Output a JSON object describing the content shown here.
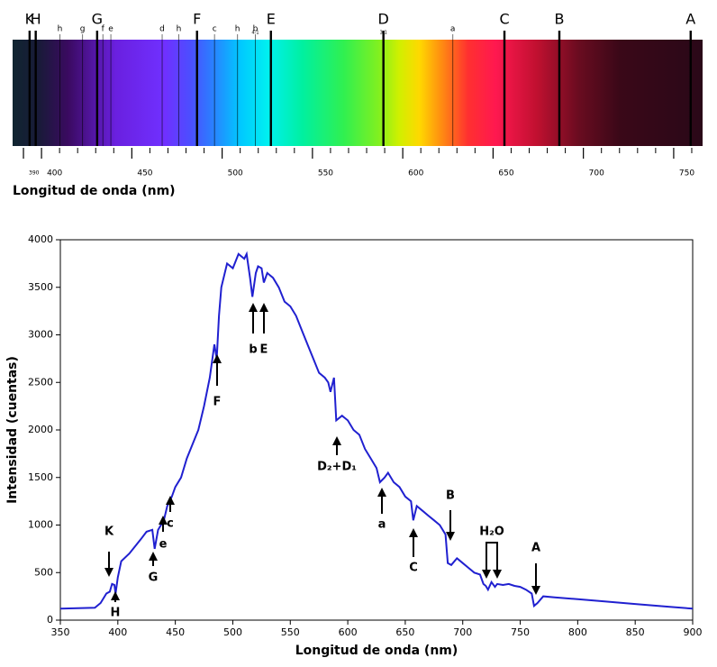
{
  "chart_data": [
    {
      "type": "spectrum",
      "xlabel": "Longitud de onda (nm)",
      "xlim": [
        384,
        766
      ],
      "xticks": [
        390,
        400,
        450,
        500,
        550,
        600,
        650,
        700,
        750
      ],
      "xminorticks": [
        410,
        420,
        430,
        440,
        460,
        470,
        480,
        490,
        510,
        520,
        530,
        540,
        560,
        570,
        580,
        590,
        610,
        620,
        630,
        640,
        660,
        670,
        680,
        690,
        710,
        720,
        730,
        740,
        760
      ],
      "lines": [
        {
          "label": "K",
          "wavelength": 393.4,
          "strong": true
        },
        {
          "label": "H",
          "wavelength": 396.8,
          "strong": true
        },
        {
          "label": "h",
          "wavelength": 410.2,
          "strong": false
        },
        {
          "label": "g",
          "wavelength": 422.7,
          "strong": false
        },
        {
          "label": "G",
          "wavelength": 430.8,
          "strong": true
        },
        {
          "label": "f",
          "wavelength": 434.0,
          "strong": false
        },
        {
          "label": "e",
          "wavelength": 438.4,
          "strong": false
        },
        {
          "label": "d",
          "wavelength": 466.8,
          "strong": false
        },
        {
          "label": "h",
          "wavelength": 476.0,
          "strong": false
        },
        {
          "label": "F",
          "wavelength": 486.1,
          "strong": true
        },
        {
          "label": "c",
          "wavelength": 495.8,
          "strong": false
        },
        {
          "label": "h",
          "wavelength": 508.5,
          "strong": false
        },
        {
          "label": "b",
          "sub": "4-1",
          "wavelength": 518.4,
          "strong": false
        },
        {
          "label": "E",
          "wavelength": 527.0,
          "strong": true
        },
        {
          "label": "D",
          "sub": "3-1",
          "wavelength": 589.3,
          "strong": true
        },
        {
          "label": "a",
          "wavelength": 627.7,
          "strong": false
        },
        {
          "label": "C",
          "wavelength": 656.3,
          "strong": true
        },
        {
          "label": "B",
          "wavelength": 686.7,
          "strong": true
        },
        {
          "label": "A",
          "wavelength": 759.4,
          "strong": true
        }
      ]
    },
    {
      "type": "line",
      "xlabel": "Longitud de onda (nm)",
      "ylabel": "Intensidad (cuentas)",
      "color": "#2020d0",
      "xlim": [
        350,
        900
      ],
      "ylim": [
        0,
        4000
      ],
      "xticks": [
        350,
        400,
        450,
        500,
        550,
        600,
        650,
        700,
        750,
        800,
        850,
        900
      ],
      "yticks": [
        0,
        500,
        1000,
        1500,
        2000,
        2500,
        3000,
        3500,
        4000
      ],
      "x": [
        350,
        380,
        385,
        390,
        393,
        395,
        397,
        398,
        400,
        403,
        410,
        420,
        425,
        430,
        432,
        435,
        440,
        443,
        447,
        450,
        455,
        460,
        465,
        470,
        475,
        480,
        484,
        486,
        488,
        490,
        495,
        500,
        505,
        510,
        512,
        515,
        517,
        520,
        522,
        525,
        527,
        530,
        535,
        540,
        545,
        550,
        555,
        560,
        565,
        570,
        575,
        580,
        583,
        585,
        588,
        590,
        595,
        600,
        605,
        610,
        615,
        620,
        625,
        628,
        632,
        635,
        640,
        645,
        650,
        655,
        657,
        660,
        665,
        670,
        675,
        680,
        685,
        687,
        690,
        695,
        700,
        705,
        710,
        715,
        718,
        720,
        722,
        725,
        728,
        730,
        735,
        740,
        745,
        750,
        755,
        760,
        762,
        765,
        770,
        780,
        800,
        820,
        850,
        880,
        900
      ],
      "values": [
        120,
        130,
        180,
        280,
        300,
        380,
        370,
        280,
        450,
        620,
        700,
        850,
        930,
        950,
        750,
        950,
        1050,
        1200,
        1300,
        1400,
        1500,
        1700,
        1850,
        2000,
        2250,
        2550,
        2900,
        2750,
        3200,
        3500,
        3750,
        3700,
        3850,
        3800,
        3850,
        3600,
        3400,
        3650,
        3720,
        3700,
        3550,
        3650,
        3600,
        3500,
        3350,
        3300,
        3200,
        3050,
        2900,
        2750,
        2600,
        2550,
        2500,
        2400,
        2550,
        2100,
        2150,
        2100,
        2000,
        1950,
        1800,
        1700,
        1600,
        1450,
        1500,
        1550,
        1450,
        1400,
        1300,
        1250,
        1050,
        1200,
        1150,
        1100,
        1050,
        1000,
        900,
        600,
        580,
        650,
        600,
        550,
        500,
        480,
        380,
        360,
        320,
        400,
        350,
        380,
        370,
        380,
        360,
        350,
        320,
        280,
        150,
        180,
        250,
        240,
        220,
        200,
        170,
        140,
        120
      ],
      "annotations": [
        "K",
        "H",
        "G",
        "e",
        "c",
        "F",
        "b",
        "E",
        "D₂+D₁",
        "a",
        "C",
        "B",
        "H₂O",
        "A"
      ]
    }
  ]
}
